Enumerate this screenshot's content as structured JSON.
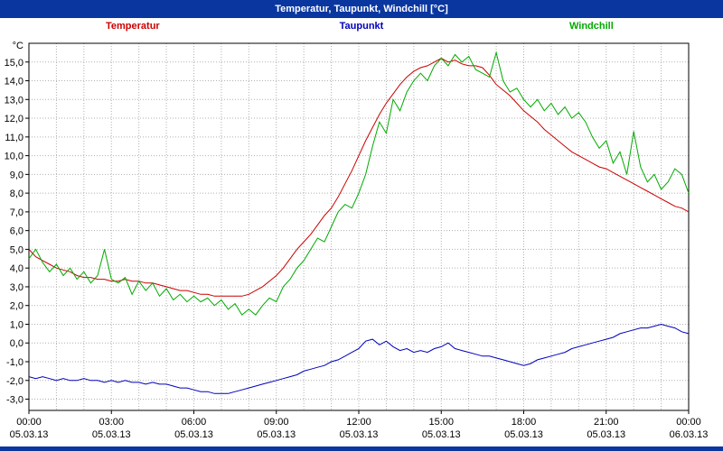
{
  "window": {
    "title": "Temperatur, Taupunkt, Windchill [°C]"
  },
  "legend": [
    {
      "label": "Temperatur",
      "color": "#cc0000"
    },
    {
      "label": "Taupunkt",
      "color": "#0000bb"
    },
    {
      "label": "Windchill",
      "color": "#00aa00"
    }
  ],
  "chart_data": {
    "type": "line",
    "title": "Temperatur, Taupunkt, Windchill [°C]",
    "ylabel_unit": "°C",
    "grid": true,
    "ylim": [
      -3.6,
      16.0
    ],
    "xlim_hours": [
      0,
      24
    ],
    "y_tick_labels": [
      "15,0",
      "14,0",
      "13,0",
      "12,0",
      "11,0",
      "10,0",
      "9,0",
      "8,0",
      "7,0",
      "6,0",
      "5,0",
      "4,0",
      "3,0",
      "2,0",
      "1,0",
      "0,0",
      "-1,0",
      "-2,0",
      "-3,0"
    ],
    "y_tick_top_value": 15,
    "y_tick_step": -1,
    "x_ticks": [
      {
        "hour": 0,
        "time": "00:00",
        "date": "05.03.13"
      },
      {
        "hour": 3,
        "time": "03:00",
        "date": "05.03.13"
      },
      {
        "hour": 6,
        "time": "06:00",
        "date": "05.03.13"
      },
      {
        "hour": 9,
        "time": "09:00",
        "date": "05.03.13"
      },
      {
        "hour": 12,
        "time": "12:00",
        "date": "05.03.13"
      },
      {
        "hour": 15,
        "time": "15:00",
        "date": "05.03.13"
      },
      {
        "hour": 18,
        "time": "18:00",
        "date": "05.03.13"
      },
      {
        "hour": 21,
        "time": "21:00",
        "date": "05.03.13"
      },
      {
        "hour": 24,
        "time": "00:00",
        "date": "06.03.13"
      }
    ],
    "sample_step_hours": 0.25,
    "series": [
      {
        "name": "Temperatur",
        "color": "#cc0000",
        "values": [
          5.0,
          4.6,
          4.4,
          4.2,
          4.0,
          3.9,
          3.8,
          3.6,
          3.5,
          3.5,
          3.4,
          3.4,
          3.3,
          3.3,
          3.4,
          3.3,
          3.3,
          3.2,
          3.2,
          3.1,
          3.0,
          2.9,
          2.8,
          2.8,
          2.7,
          2.6,
          2.6,
          2.5,
          2.5,
          2.5,
          2.5,
          2.5,
          2.6,
          2.8,
          3.0,
          3.3,
          3.6,
          4.0,
          4.5,
          5.0,
          5.4,
          5.8,
          6.3,
          6.8,
          7.2,
          7.8,
          8.5,
          9.2,
          10.0,
          10.8,
          11.5,
          12.2,
          12.8,
          13.3,
          13.8,
          14.2,
          14.5,
          14.7,
          14.8,
          15.0,
          15.2,
          15.0,
          15.1,
          14.9,
          14.8,
          14.8,
          14.7,
          14.3,
          13.8,
          13.5,
          13.2,
          12.8,
          12.4,
          12.1,
          11.8,
          11.4,
          11.1,
          10.8,
          10.5,
          10.2,
          10.0,
          9.8,
          9.6,
          9.4,
          9.3,
          9.1,
          8.9,
          8.7,
          8.5,
          8.3,
          8.1,
          7.9,
          7.7,
          7.5,
          7.3,
          7.2,
          7.0
        ]
      },
      {
        "name": "Taupunkt",
        "color": "#0000bb",
        "values": [
          -1.8,
          -1.9,
          -1.8,
          -1.9,
          -2.0,
          -1.9,
          -2.0,
          -2.0,
          -1.9,
          -2.0,
          -2.0,
          -2.1,
          -2.0,
          -2.1,
          -2.0,
          -2.1,
          -2.1,
          -2.2,
          -2.1,
          -2.2,
          -2.2,
          -2.3,
          -2.4,
          -2.4,
          -2.5,
          -2.6,
          -2.6,
          -2.7,
          -2.7,
          -2.7,
          -2.6,
          -2.5,
          -2.4,
          -2.3,
          -2.2,
          -2.1,
          -2.0,
          -1.9,
          -1.8,
          -1.7,
          -1.5,
          -1.4,
          -1.3,
          -1.2,
          -1.0,
          -0.9,
          -0.7,
          -0.5,
          -0.3,
          0.1,
          0.2,
          -0.1,
          0.1,
          -0.2,
          -0.4,
          -0.3,
          -0.5,
          -0.4,
          -0.5,
          -0.3,
          -0.2,
          0.0,
          -0.3,
          -0.4,
          -0.5,
          -0.6,
          -0.7,
          -0.7,
          -0.8,
          -0.9,
          -1.0,
          -1.1,
          -1.2,
          -1.1,
          -0.9,
          -0.8,
          -0.7,
          -0.6,
          -0.5,
          -0.3,
          -0.2,
          -0.1,
          0.0,
          0.1,
          0.2,
          0.3,
          0.5,
          0.6,
          0.7,
          0.8,
          0.8,
          0.9,
          1.0,
          0.9,
          0.8,
          0.6,
          0.5
        ]
      },
      {
        "name": "Windchill",
        "color": "#00aa00",
        "values": [
          4.5,
          5.0,
          4.3,
          3.8,
          4.2,
          3.6,
          4.0,
          3.4,
          3.8,
          3.2,
          3.6,
          5.0,
          3.4,
          3.2,
          3.5,
          2.6,
          3.3,
          2.8,
          3.2,
          2.5,
          2.9,
          2.3,
          2.6,
          2.2,
          2.5,
          2.2,
          2.4,
          2.0,
          2.3,
          1.8,
          2.1,
          1.5,
          1.8,
          1.5,
          2.0,
          2.4,
          2.2,
          3.0,
          3.4,
          4.0,
          4.4,
          5.0,
          5.6,
          5.4,
          6.2,
          7.0,
          7.4,
          7.2,
          8.0,
          9.0,
          10.5,
          11.8,
          11.2,
          13.0,
          12.4,
          13.4,
          14.0,
          14.4,
          14.0,
          14.8,
          15.2,
          14.8,
          15.4,
          15.0,
          15.3,
          14.6,
          14.4,
          14.2,
          15.5,
          14.0,
          13.4,
          13.6,
          13.0,
          12.6,
          13.0,
          12.4,
          12.8,
          12.2,
          12.6,
          12.0,
          12.3,
          11.8,
          11.0,
          10.4,
          10.8,
          9.6,
          10.2,
          9.0,
          11.3,
          9.4,
          8.6,
          9.0,
          8.2,
          8.6,
          9.3,
          9.0,
          8.0
        ]
      }
    ],
    "colors": {
      "grid": "#b0b0b0",
      "border": "#000000",
      "titlebar": "#0a36a0"
    }
  }
}
